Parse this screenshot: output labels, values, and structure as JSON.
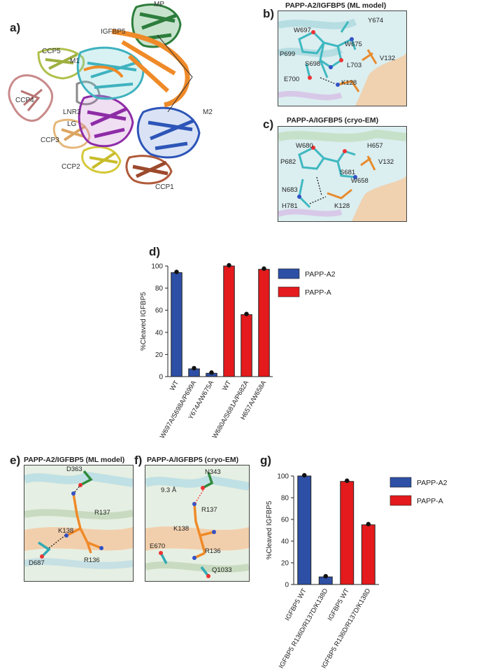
{
  "panels": {
    "a": {
      "letter": "a)",
      "labels": {
        "mp": "MP",
        "igfbp5": "IGFBP5",
        "ccp5": "CCP5",
        "m1": "M1",
        "ccp4": "CCP4",
        "lnr3": "LNR3",
        "lg": "LG",
        "ccp3": "CCP3",
        "ccp2": "CCP2",
        "ccp1": "CCP1",
        "m2": "M2"
      }
    },
    "b": {
      "letter": "b)",
      "title": "PAPP-A2/IGFBP5 (ML model)",
      "residues": {
        "w697": "W697",
        "y674": "Y674",
        "w675": "W675",
        "p699": "P699",
        "s698": "S698",
        "l703": "L703",
        "v132": "V132",
        "e700": "E700",
        "k128": "K128"
      }
    },
    "c": {
      "letter": "c)",
      "title": "PAPP-A/IGFBP5 (cryo-EM)",
      "residues": {
        "w680": "W680",
        "h657": "H657",
        "p682": "P682",
        "v132": "V132",
        "s681": "S681",
        "w658": "W658",
        "n683": "N683",
        "h781": "H781",
        "k128": "K128"
      }
    },
    "e": {
      "letter": "e)",
      "title": "PAPP-A2/IGFBP5 (ML model)",
      "residues": {
        "d363": "D363",
        "r137": "R137",
        "k138": "K138",
        "d687": "D687",
        "r136": "R136"
      }
    },
    "f": {
      "letter": "f)",
      "title": "PAPP-A/IGFBP5 (cryo-EM)",
      "residues": {
        "n343": "N343",
        "dist": "9.3 Å",
        "r137": "R137",
        "k138": "K138",
        "e670": "E670",
        "r136": "R136",
        "q1033": "Q1033"
      }
    }
  },
  "colors": {
    "papp_a2": "#2d4fa5",
    "papp_a": "#e41a1c"
  },
  "chart_data": [
    {
      "panel": "d)",
      "type": "bar",
      "ylabel": "%Cleaved IGFBP5",
      "ylim": [
        0,
        100
      ],
      "yticks": [
        0,
        20,
        40,
        60,
        80,
        100
      ],
      "categories": [
        "WT",
        "W697A/S698A/P699A",
        "Y674A/W675A",
        "WT",
        "W680A/S681A/P682A",
        "H657A/W658A"
      ],
      "values": [
        94,
        7,
        3,
        100,
        56,
        97
      ],
      "groups": [
        "PAPP-A2",
        "PAPP-A2",
        "PAPP-A2",
        "PAPP-A",
        "PAPP-A",
        "PAPP-A"
      ],
      "legend": [
        "PAPP-A2",
        "PAPP-A"
      ],
      "legend_position": "right"
    },
    {
      "panel": "g)",
      "type": "bar",
      "ylabel": "%Cleaved IGFBP5",
      "ylim": [
        0,
        100
      ],
      "yticks": [
        0,
        20,
        40,
        60,
        80,
        100
      ],
      "categories": [
        "IGFBP5 WT",
        "IGFBP5 R136D/R137D/K138D",
        "IGFBP5 WT",
        "IGFBP5 R136D/R137D/K138D"
      ],
      "values": [
        100,
        7,
        95,
        55
      ],
      "groups": [
        "PAPP-A2",
        "PAPP-A2",
        "PAPP-A",
        "PAPP-A"
      ],
      "legend": [
        "PAPP-A2",
        "PAPP-A"
      ],
      "legend_position": "right"
    }
  ]
}
